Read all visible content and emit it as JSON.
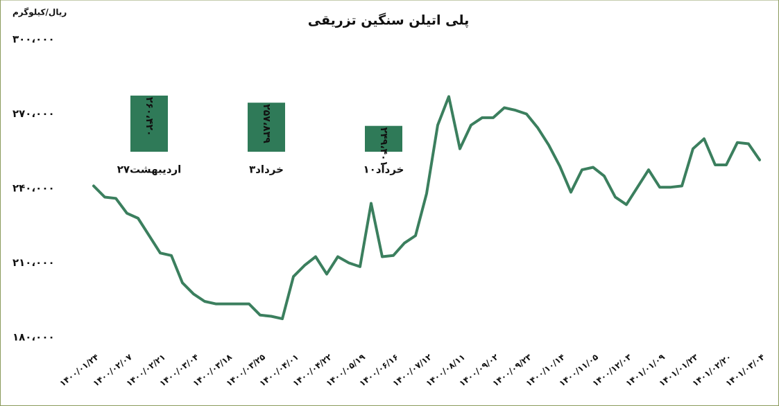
{
  "chart_data": [
    {
      "type": "line",
      "title": "پلی اتیلن سنگین تزریقی",
      "y_label": "ریال/کیلوگرم",
      "categories": [
        "۱۴۰۰/۰۱/۲۴",
        null,
        null,
        "۱۴۰۰/۰۲/۰۷",
        null,
        null,
        "۱۴۰۰/۰۲/۲۱",
        null,
        null,
        "۱۴۰۰/۰۳/۰۴",
        null,
        null,
        "۱۴۰۰/۰۳/۱۸",
        null,
        null,
        "۱۴۰۰/۰۳/۲۵",
        null,
        null,
        "۱۴۰۰/۰۴/۰۱",
        null,
        null,
        "۱۴۰۰/۰۴/۲۲",
        null,
        null,
        "۱۴۰۰/۰۵/۱۹",
        null,
        null,
        "۱۴۰۰/۰۶/۱۶",
        null,
        null,
        "۱۴۰۰/۰۷/۱۲",
        null,
        null,
        "۱۴۰۰/۰۸/۱۱",
        null,
        null,
        "۱۴۰۰/۰۹/۰۲",
        null,
        null,
        "۱۴۰۰/۰۹/۲۳",
        null,
        null,
        "۱۴۰۰/۱۰/۱۴",
        null,
        null,
        "۱۴۰۰/۱۱/۰۵",
        null,
        null,
        "۱۴۰۰/۱۲/۰۳",
        null,
        null,
        "۱۴۰۱/۰۱/۰۹",
        null,
        null,
        "۱۴۰۱/۰۱/۲۳",
        null,
        null,
        "۱۴۰۱/۰۲/۲۰",
        null,
        null,
        "۱۴۰۱/۰۳/۰۴"
      ],
      "series": [
        {
          "name": "پلی اتیلن سنگین تزریقی",
          "color": "#3b7f5e",
          "values": [
            241000,
            236500,
            236000,
            230000,
            228000,
            221000,
            214000,
            213000,
            202000,
            197500,
            194500,
            193500,
            193500,
            193500,
            193500,
            189000,
            188500,
            187500,
            204500,
            209000,
            212500,
            205500,
            212500,
            210000,
            208500,
            234000,
            212500,
            213000,
            218000,
            221000,
            238000,
            265500,
            277000,
            256000,
            265500,
            268500,
            268500,
            272500,
            271500,
            270000,
            264500,
            257500,
            249000,
            238500,
            247500,
            248500,
            245000,
            236500,
            233500,
            240500,
            247500,
            240500,
            240500,
            241000,
            256000,
            260000,
            249500,
            249500,
            258500,
            258000,
            251500
          ]
        }
      ],
      "ylim": [
        180000,
        300000
      ],
      "yticks": [
        {
          "value": 180000,
          "label": "۱۸۰،۰۰۰"
        },
        {
          "value": 210000,
          "label": "۲۱۰،۰۰۰"
        },
        {
          "value": 240000,
          "label": "۲۴۰،۰۰۰"
        },
        {
          "value": 270000,
          "label": "۲۷۰،۰۰۰"
        },
        {
          "value": 300000,
          "label": "۳۰۰،۰۰۰"
        }
      ],
      "grid": false
    },
    {
      "type": "bar",
      "categories": [
        "۲۷اردیبهشت",
        "۳خرداد",
        "۱۰خرداد"
      ],
      "values": [
        260420,
        257839,
        249401
      ],
      "value_labels": [
        "۲۶۰،۴۲۰",
        "۲۵۷،۸۳۹",
        "۲۴۹،۴۰۱"
      ],
      "color": "#2f7a58",
      "ylim": [
        240000,
        262000
      ]
    }
  ]
}
